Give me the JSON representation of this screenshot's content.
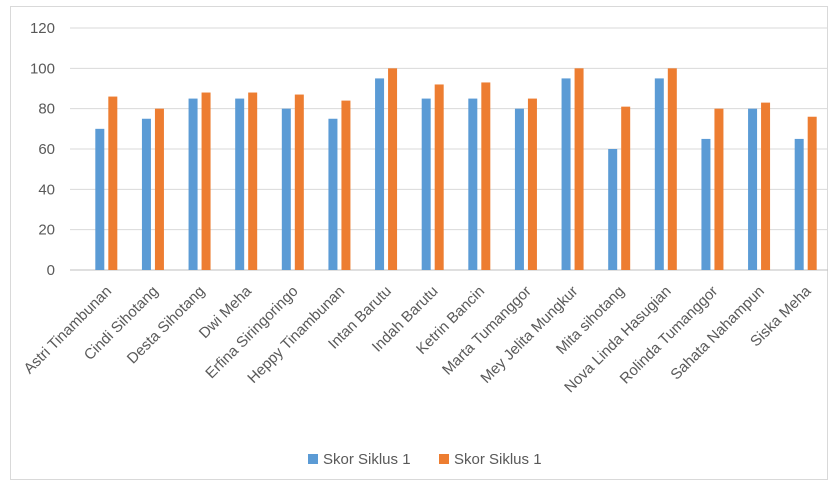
{
  "chart_data": {
    "type": "bar",
    "categories": [
      "Astri Tinambunan",
      "Cindi Sihotang",
      "Desta Sihotang",
      "Dwi Meha",
      "Erfina Siringoringo",
      "Heppy Tinambunan",
      "Intan Barutu",
      "Indah Barutu",
      "Ketrin Bancin",
      "Marta Tumanggor",
      "Mey Jelita Mungkur",
      "Mita sihotang",
      "Nova Linda Hasugian",
      "Rolinda Tumanggor",
      "Sahata Nahampun",
      "Siska Meha"
    ],
    "series": [
      {
        "name": "Skor Siklus 1",
        "color": "#5b9bd5",
        "values": [
          70,
          75,
          85,
          85,
          80,
          75,
          95,
          85,
          85,
          80,
          95,
          60,
          95,
          65,
          80,
          65
        ]
      },
      {
        "name": "Skor Siklus 1",
        "color": "#ed7d31",
        "values": [
          86,
          80,
          88,
          88,
          87,
          84,
          100,
          92,
          93,
          85,
          100,
          81,
          100,
          80,
          83,
          76
        ]
      }
    ],
    "yticks": [
      0,
      20,
      40,
      60,
      80,
      100,
      120
    ],
    "ylim": [
      0,
      120
    ],
    "grid": true,
    "legend_position": "bottom",
    "title": "",
    "xlabel": "",
    "ylabel": ""
  }
}
